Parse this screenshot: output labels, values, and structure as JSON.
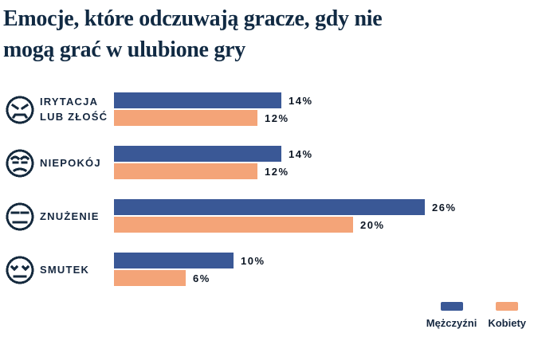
{
  "title": "Emocje, które odczuwają gracze, gdy nie mogą grać w ulubione gry",
  "title_lines": [
    "Emocje, które odczuwają gracze, gdy nie",
    "mogą grać w ulubione gry"
  ],
  "colors": {
    "men": "#3a5896",
    "women": "#f4a478",
    "title_text": "#112a43",
    "label_text": "#15273f",
    "value_text": "#0c1624",
    "background": "#ffffff"
  },
  "legend": {
    "men": "Mężczyźni",
    "women": "Kobiety",
    "position": "bottom-right"
  },
  "chart_data": {
    "type": "bar",
    "orientation": "horizontal",
    "title": "Emocje, które odczuwają gracze, gdy nie mogą grać w ulubione gry",
    "categories": [
      "IRYTACJA LUB ZŁOŚĆ",
      "NIEPOKÓJ",
      "ZNUŻENIE",
      "SMUTEK"
    ],
    "series": [
      {
        "name": "Mężczyźni",
        "color": "#3a5896",
        "values": [
          14,
          14,
          26,
          10
        ]
      },
      {
        "name": "Kobiety",
        "color": "#f4a478",
        "values": [
          12,
          12,
          20,
          6
        ]
      }
    ],
    "unit": "%",
    "value_labels": true,
    "grid": false,
    "xlim": [
      0,
      30
    ],
    "legend_position": "bottom-right",
    "category_icons": [
      "angry-face",
      "worried-face",
      "expressionless-face",
      "sad-face"
    ]
  },
  "rows": [
    {
      "label_lines": [
        "IRYTACJA",
        "LUB ZŁOŚĆ"
      ],
      "icon": "angry-face-icon",
      "men_pct": 14,
      "men_label": "14%",
      "women_pct": 12,
      "women_label": "12%"
    },
    {
      "label_lines": [
        "NIEPOKÓJ"
      ],
      "icon": "worried-face-icon",
      "men_pct": 14,
      "men_label": "14%",
      "women_pct": 12,
      "women_label": "12%"
    },
    {
      "label_lines": [
        "ZNUŻENIE"
      ],
      "icon": "expressionless-face-icon",
      "men_pct": 26,
      "men_label": "26%",
      "women_pct": 20,
      "women_label": "20%"
    },
    {
      "label_lines": [
        "SMUTEK"
      ],
      "icon": "sad-face-icon",
      "men_pct": 10,
      "men_label": "10%",
      "women_pct": 6,
      "women_label": "6%"
    }
  ]
}
